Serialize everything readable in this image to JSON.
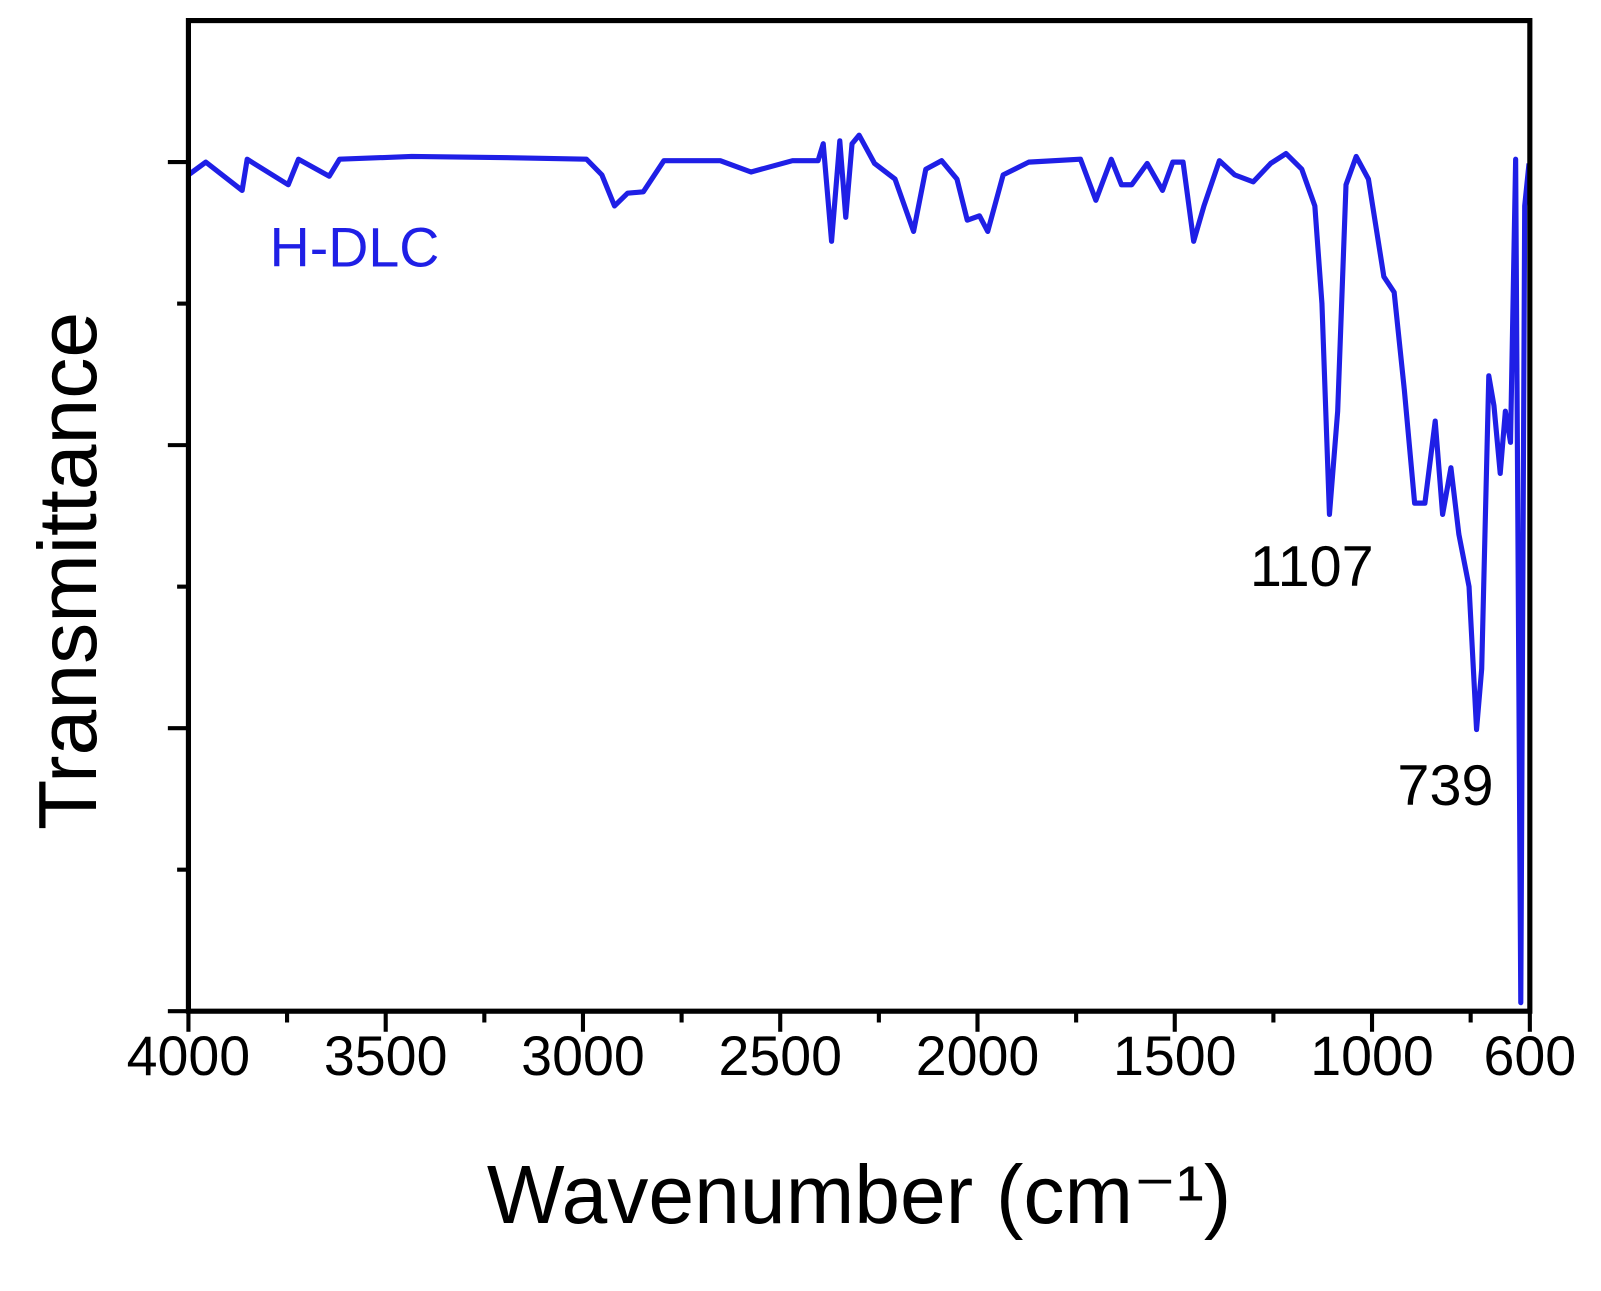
{
  "chart_data": {
    "type": "line",
    "xlabel": "Wavenumber (cm⁻¹)",
    "ylabel": "Transmittance",
    "x": [
      4000,
      3956,
      3864,
      3851,
      3747,
      3721,
      3643,
      3617,
      3434,
      3173,
      2991,
      2952,
      2920,
      2887,
      2847,
      2795,
      2652,
      2574,
      2469,
      2404,
      2391,
      2370,
      2349,
      2334,
      2318,
      2300,
      2261,
      2209,
      2162,
      2131,
      2091,
      2052,
      2026,
      1995,
      1974,
      1935,
      1870,
      1739,
      1700,
      1661,
      1635,
      1609,
      1570,
      1531,
      1505,
      1479,
      1452,
      1426,
      1387,
      1348,
      1301,
      1257,
      1218,
      1178,
      1145,
      1127,
      1108,
      1087,
      1066,
      1040,
      1009,
      970,
      944,
      918,
      892,
      866,
      840,
      821,
      800,
      780,
      754,
      735,
      722,
      704,
      691,
      675,
      662,
      649,
      636,
      623,
      613,
      602
    ],
    "series": [
      {
        "name": "H-DLC",
        "color": "#1f1fe6",
        "values": [
          5.91,
          6.0,
          5.8,
          6.02,
          5.84,
          6.02,
          5.9,
          6.02,
          6.04,
          6.03,
          6.02,
          5.91,
          5.69,
          5.78,
          5.79,
          6.01,
          6.01,
          5.93,
          6.01,
          6.01,
          6.13,
          5.44,
          6.15,
          5.61,
          6.13,
          6.19,
          5.99,
          5.88,
          5.51,
          5.95,
          6.01,
          5.88,
          5.59,
          5.62,
          5.51,
          5.91,
          6.0,
          6.02,
          5.73,
          6.02,
          5.84,
          5.84,
          5.99,
          5.8,
          6.0,
          6.0,
          5.44,
          5.69,
          6.01,
          5.91,
          5.86,
          5.99,
          6.06,
          5.95,
          5.69,
          5.0,
          3.51,
          4.24,
          5.84,
          6.04,
          5.88,
          5.19,
          5.08,
          4.39,
          3.59,
          3.59,
          4.17,
          3.51,
          3.84,
          3.37,
          3.0,
          1.99,
          2.42,
          4.49,
          4.28,
          3.8,
          4.24,
          4.02,
          6.02,
          0.06,
          5.69,
          5.99
        ]
      }
    ],
    "annotations": [
      "1107",
      "739"
    ],
    "xlim": [
      4000,
      600
    ],
    "xticks": [
      4000,
      3500,
      3000,
      2500,
      2000,
      1500,
      1000,
      600
    ],
    "xminor": [
      3750,
      3250,
      2750,
      2250,
      1750,
      1250,
      750
    ],
    "ylim": [
      0,
      7
    ],
    "yticks": [
      0,
      2,
      4,
      6
    ],
    "yminor": [
      1,
      3,
      5
    ],
    "ytick_labels": false,
    "grid": false
  }
}
